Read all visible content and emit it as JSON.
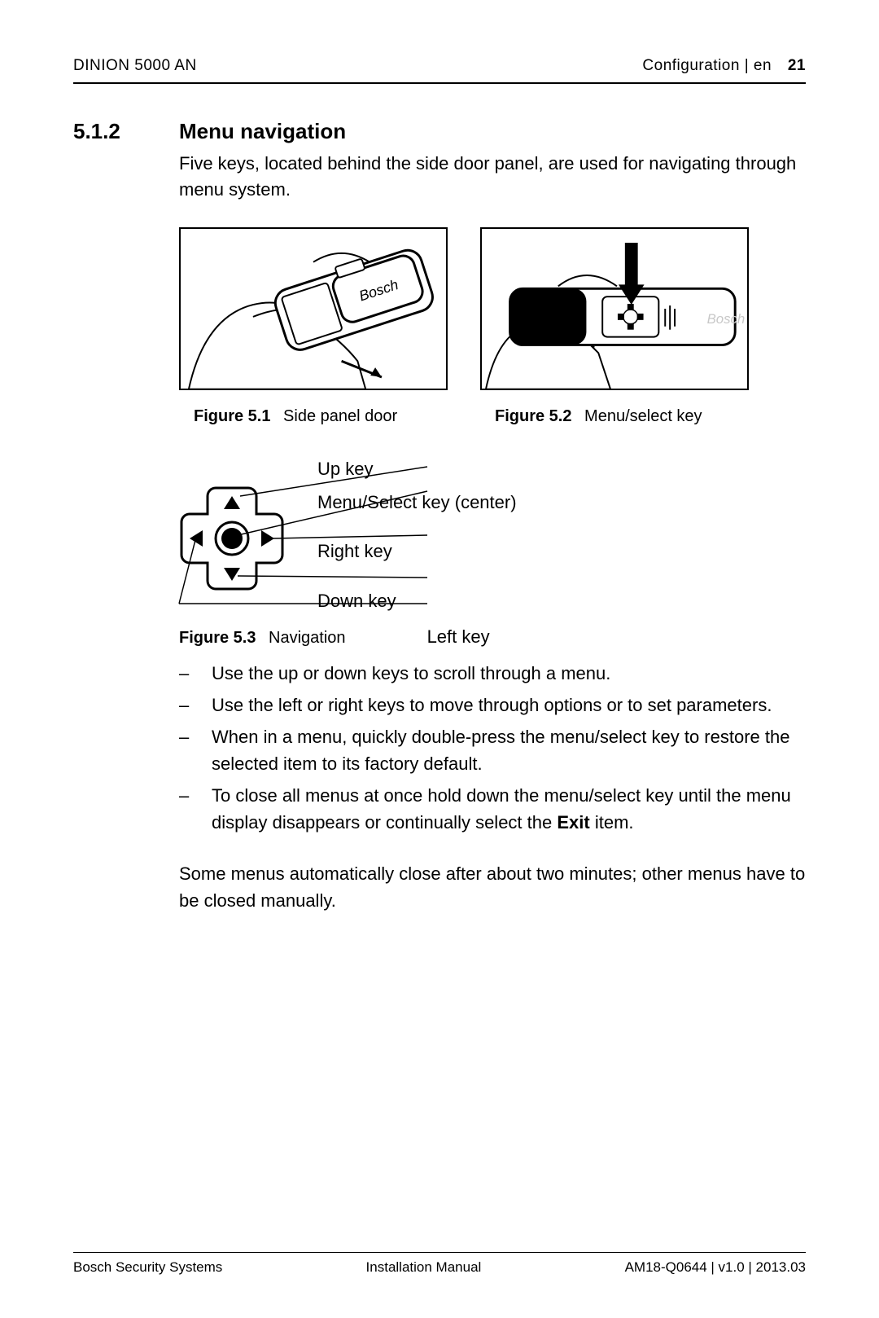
{
  "header": {
    "left": "DINION 5000 AN",
    "right_context": "Configuration | en",
    "page_number": "21"
  },
  "section": {
    "number": "5.1.2",
    "title": "Menu navigation",
    "intro": "Five keys, located behind the side door panel, are used for navigating through menu system."
  },
  "figures": {
    "f1": {
      "label": "Figure  5.1",
      "caption": "Side panel door",
      "brand": "Bosch"
    },
    "f2": {
      "label": "Figure  5.2",
      "caption": "Menu/select key",
      "brand": "Bosch"
    },
    "f3": {
      "label": "Figure  5.3",
      "caption": "Navigation"
    }
  },
  "nav_labels": {
    "up": "Up key",
    "center": "Menu/Select key (center)",
    "right": "Right key",
    "down": "Down key",
    "left": "Left key"
  },
  "bullets": [
    "Use the up or down keys to scroll through a menu.",
    "Use the left or right keys to move through options or to set parameters.",
    "When in a menu, quickly double-press the menu/select key to restore the selected item to its factory default.",
    "To close all menus at once hold down the menu/select key until the menu display disappears or continually select the **Exit** item."
  ],
  "closing": "Some menus automatically close after about two minutes; other menus have to be closed manually.",
  "footer": {
    "left": "Bosch Security Systems",
    "center": "Installation Manual",
    "right": "AM18-Q0644 | v1.0 | 2013.03"
  },
  "colors": {
    "text": "#000000",
    "bg": "#ffffff",
    "gray_brand": "#c8c8c8"
  }
}
